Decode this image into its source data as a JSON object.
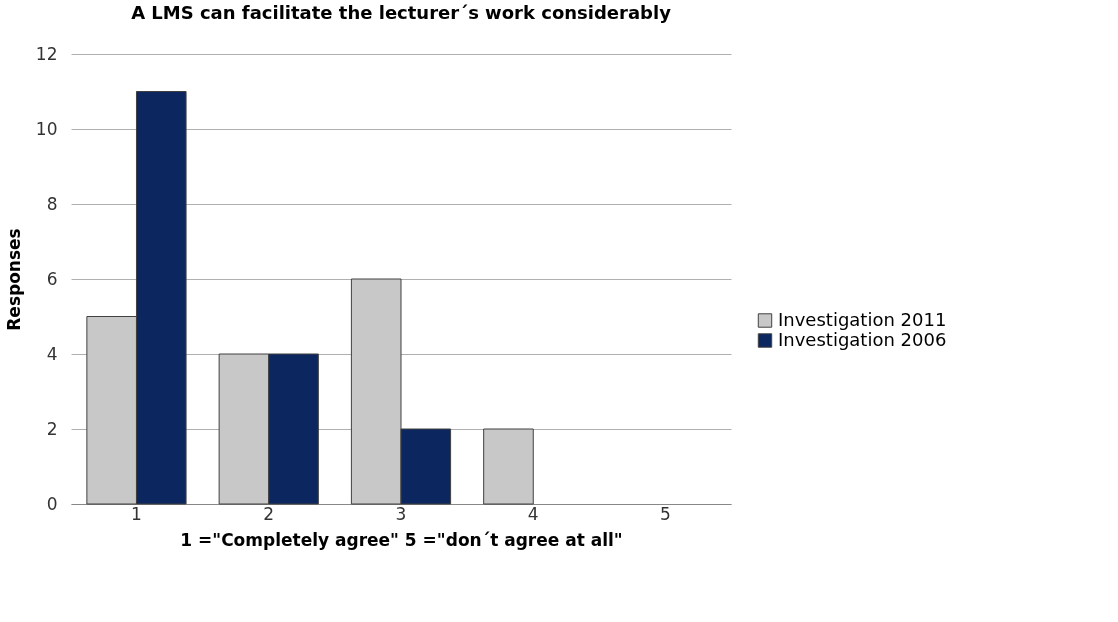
{
  "chart_data": {
    "type": "bar",
    "title": "A LMS can facilitate the lecturer´s work considerably",
    "xlabel": "1 =\"Completely agree\" 5 =\"don´t agree at all\"",
    "ylabel": "Responses",
    "categories": [
      "1",
      "2",
      "3",
      "4",
      "5"
    ],
    "series": [
      {
        "name": "Investigation 2011",
        "color": "#c8c8c8",
        "values": [
          5,
          4,
          6,
          2,
          null
        ]
      },
      {
        "name": "Investigation 2006",
        "color": "#0c2660",
        "values": [
          11,
          4,
          2,
          null,
          null
        ]
      }
    ],
    "ylim": [
      0,
      12
    ],
    "yticks": [
      0,
      2,
      4,
      6,
      8,
      10,
      12
    ],
    "grid": "y",
    "legend": "right"
  }
}
